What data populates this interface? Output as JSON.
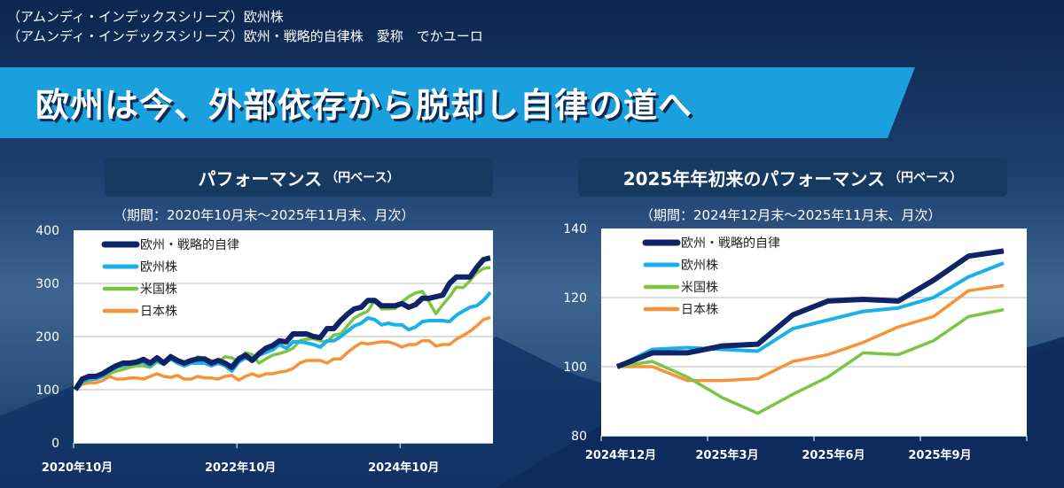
{
  "header": {
    "line1": "（アムンディ・インデックスシリーズ）欧州株",
    "line2": "（アムンディ・インデックスシリーズ）欧州・戦略的自律株　愛称　でかユーロ"
  },
  "banner": {
    "title": "欧州は今、外部依存から脱却し自律の道へ"
  },
  "colors": {
    "dark": "#0e2466",
    "light": "#1ab0ea",
    "green": "#7cc544",
    "orange": "#f7923a",
    "banner": "#1aa0dc"
  },
  "chart_data": [
    {
      "type": "line",
      "title": "パフォーマンス",
      "title_suffix": "（円ベース）",
      "subtitle": "（期間：2020年10月末～2025年11月末、月次）",
      "ylim": [
        0,
        400
      ],
      "yticks": [
        "0",
        "100",
        "200",
        "300",
        "400"
      ],
      "xticks": [
        "2020年10月",
        "2022年10月",
        "2024年10月"
      ],
      "grid": true,
      "legend": "top-left",
      "x_start": "2020-10",
      "x_end": "2025-11",
      "series": [
        {
          "name": "欧州・戦略的自律",
          "color": "#0e2466",
          "values": [
            100,
            120,
            125,
            125,
            130,
            138,
            145,
            150,
            150,
            152,
            157,
            150,
            160,
            150,
            162,
            155,
            150,
            155,
            158,
            158,
            150,
            155,
            150,
            142,
            158,
            165,
            155,
            168,
            178,
            183,
            192,
            190,
            205,
            205,
            205,
            200,
            198,
            215,
            215,
            230,
            242,
            252,
            255,
            268,
            268,
            258,
            258,
            258,
            262,
            255,
            260,
            272,
            272,
            275,
            278,
            300,
            312,
            312,
            312,
            330,
            345,
            348
          ]
        },
        {
          "name": "欧州株",
          "color": "#1ab0ea",
          "values": [
            100,
            115,
            120,
            120,
            125,
            135,
            142,
            145,
            148,
            150,
            152,
            145,
            155,
            148,
            158,
            150,
            145,
            150,
            150,
            150,
            145,
            150,
            145,
            135,
            152,
            160,
            155,
            165,
            170,
            175,
            185,
            178,
            190,
            190,
            188,
            185,
            180,
            192,
            192,
            200,
            210,
            220,
            225,
            235,
            232,
            222,
            225,
            222,
            222,
            213,
            218,
            228,
            230,
            230,
            230,
            228,
            240,
            248,
            255,
            258,
            268,
            283
          ]
        },
        {
          "name": "米国株",
          "color": "#7cc544",
          "values": [
            100,
            112,
            118,
            120,
            125,
            130,
            135,
            138,
            142,
            145,
            145,
            142,
            152,
            148,
            165,
            152,
            148,
            150,
            162,
            158,
            155,
            152,
            162,
            160,
            152,
            170,
            166,
            150,
            158,
            165,
            168,
            172,
            178,
            192,
            195,
            196,
            192,
            190,
            203,
            205,
            220,
            235,
            242,
            248,
            268,
            252,
            252,
            253,
            265,
            275,
            282,
            285,
            265,
            243,
            260,
            275,
            293,
            292,
            305,
            320,
            328,
            330
          ]
        },
        {
          "name": "日本株",
          "color": "#f7923a",
          "values": [
            100,
            110,
            113,
            113,
            117,
            125,
            120,
            120,
            122,
            122,
            120,
            125,
            130,
            125,
            123,
            127,
            120,
            120,
            125,
            122,
            122,
            120,
            125,
            127,
            118,
            125,
            130,
            125,
            130,
            130,
            133,
            135,
            140,
            150,
            155,
            155,
            155,
            150,
            158,
            158,
            170,
            180,
            188,
            186,
            188,
            190,
            190,
            186,
            180,
            185,
            185,
            192,
            192,
            182,
            185,
            185,
            195,
            202,
            210,
            220,
            232,
            236
          ]
        }
      ]
    },
    {
      "type": "line",
      "title": "2025年年初来のパフォーマンス",
      "title_suffix": "（円ベース）",
      "subtitle": "（期間：2024年12月末～2025年11月末、月次）",
      "ylim": [
        80,
        140
      ],
      "yticks": [
        "80",
        "100",
        "120",
        "140"
      ],
      "xticks": [
        "2024年12月",
        "2025年3月",
        "2025年6月",
        "2025年9月"
      ],
      "grid": true,
      "legend": "top-left",
      "x_start": "2024-12",
      "x_end": "2025-11",
      "series": [
        {
          "name": "欧州・戦略的自律",
          "color": "#0e2466",
          "values": [
            100,
            104,
            104,
            106,
            106.5,
            115,
            119,
            119.5,
            119,
            125,
            132,
            133.5
          ]
        },
        {
          "name": "欧州株",
          "color": "#1ab0ea",
          "values": [
            100,
            105,
            105.5,
            105,
            104.5,
            111,
            113.5,
            116,
            117,
            120,
            126,
            130
          ]
        },
        {
          "name": "米国株",
          "color": "#7cc544",
          "values": [
            100,
            101.5,
            97,
            91,
            86.5,
            92,
            97,
            104,
            103.5,
            107.5,
            114.5,
            116.5
          ]
        },
        {
          "name": "日本株",
          "color": "#f7923a",
          "values": [
            100,
            100,
            96,
            96,
            96.5,
            101.5,
            103.5,
            107,
            111.5,
            114.5,
            122,
            123.5
          ]
        }
      ]
    }
  ]
}
